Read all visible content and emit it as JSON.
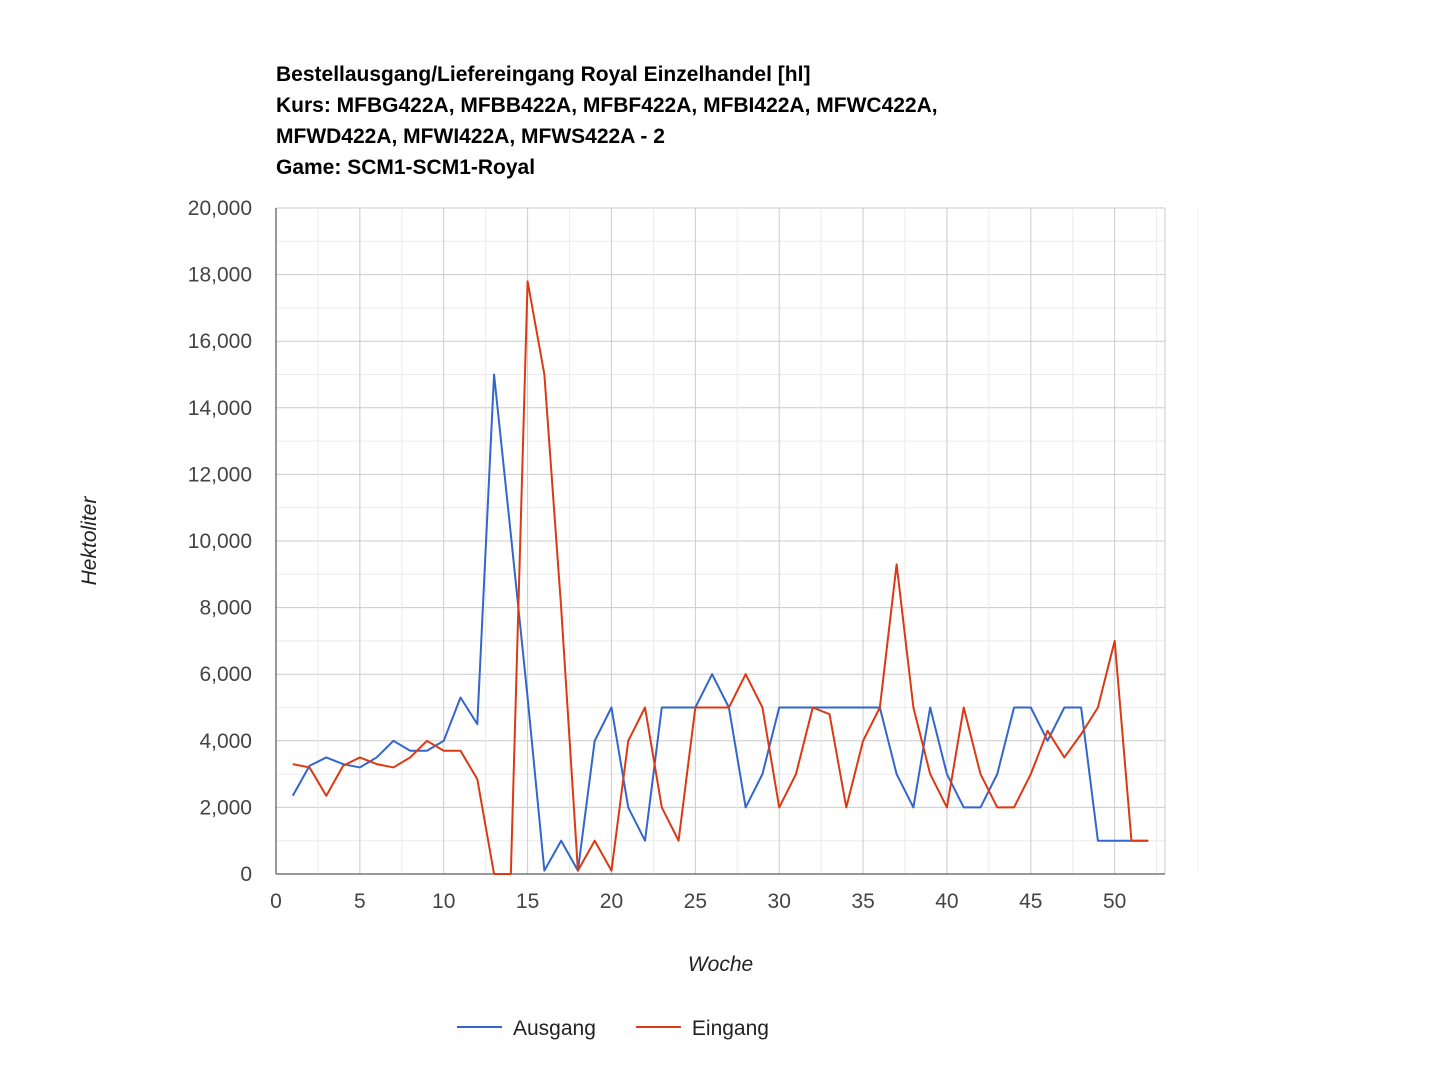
{
  "chart_data": {
    "type": "line",
    "title_lines": [
      "Bestellausgang/Liefereingang Royal Einzelhandel [hl]",
      "Kurs: MFBG422A, MFBB422A, MFBF422A, MFBI422A, MFWC422A,",
      "MFWD422A, MFWI422A, MFWS422A - 2",
      "Game: SCM1-SCM1-Royal"
    ],
    "xlabel": "Woche",
    "ylabel": "Hektoliter",
    "xlim": [
      0,
      53
    ],
    "ylim": [
      0,
      20000
    ],
    "x_ticks": [
      0,
      5,
      10,
      15,
      20,
      25,
      30,
      35,
      40,
      45,
      50
    ],
    "y_ticks": [
      0,
      2000,
      4000,
      6000,
      8000,
      10000,
      12000,
      14000,
      16000,
      18000,
      20000
    ],
    "x_tick_labels": [
      "0",
      "5",
      "10",
      "15",
      "20",
      "25",
      "30",
      "35",
      "40",
      "45",
      "50"
    ],
    "y_tick_labels": [
      "0",
      "2,000",
      "4,000",
      "6,000",
      "8,000",
      "10,000",
      "12,000",
      "14,000",
      "16,000",
      "18,000",
      "20,000"
    ],
    "grid": true,
    "legend_position": "bottom",
    "x": [
      1,
      2,
      3,
      4,
      5,
      6,
      7,
      8,
      9,
      10,
      11,
      12,
      13,
      14,
      15,
      16,
      17,
      18,
      19,
      20,
      21,
      22,
      23,
      24,
      25,
      26,
      27,
      28,
      29,
      30,
      31,
      32,
      33,
      34,
      35,
      36,
      37,
      38,
      39,
      40,
      41,
      42,
      43,
      44,
      45,
      46,
      47,
      48,
      49,
      50,
      51,
      52
    ],
    "series": [
      {
        "name": "Ausgang",
        "color": "#3366cc",
        "values": [
          2350,
          3250,
          3500,
          3300,
          3200,
          3500,
          4000,
          3700,
          3700,
          4000,
          5300,
          4500,
          15000,
          10200,
          5300,
          100,
          1000,
          100,
          4000,
          5000,
          2000,
          1000,
          5000,
          5000,
          5000,
          6000,
          5000,
          2000,
          3000,
          5000,
          5000,
          5000,
          5000,
          5000,
          5000,
          5000,
          3000,
          2000,
          5000,
          3000,
          2000,
          2000,
          3000,
          5000,
          5000,
          4000,
          5000,
          5000,
          1000,
          1000,
          1000,
          1000
        ]
      },
      {
        "name": "Eingang",
        "color": "#dc3912",
        "values": [
          3300,
          3200,
          2350,
          3250,
          3500,
          3300,
          3200,
          3500,
          4000,
          3700,
          3700,
          2850,
          0,
          0,
          17800,
          15000,
          8000,
          100,
          1000,
          100,
          4000,
          5000,
          2000,
          1000,
          5000,
          5000,
          5000,
          6000,
          5000,
          2000,
          3000,
          5000,
          4800,
          2000,
          4000,
          5000,
          9300,
          5000,
          3000,
          2000,
          5000,
          3000,
          2000,
          2000,
          3000,
          4300,
          3500,
          4200,
          5000,
          7000,
          1000,
          1000
        ]
      }
    ]
  }
}
